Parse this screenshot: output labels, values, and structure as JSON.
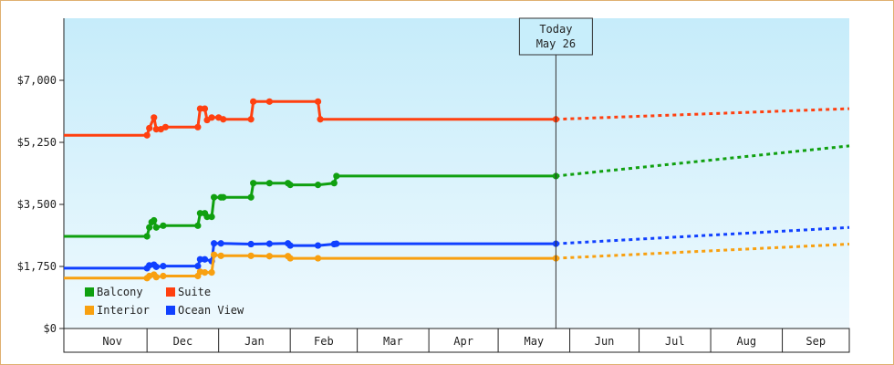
{
  "chart_data": {
    "type": "line",
    "title": "",
    "xlabel": "",
    "ylabel": "",
    "ylim": [
      0,
      8750
    ],
    "yticks": [
      {
        "value": 0,
        "label": "$0"
      },
      {
        "value": 1750,
        "label": "$1,750"
      },
      {
        "value": 3500,
        "label": "$3,500"
      },
      {
        "value": 5250,
        "label": "$5,250"
      },
      {
        "value": 7000,
        "label": "$7,000"
      }
    ],
    "xaxis": {
      "start": "2023-10-26",
      "end": "2024-09-30",
      "months": [
        {
          "label": "Nov",
          "start": "2023-11-01",
          "end": "2023-12-01"
        },
        {
          "label": "Dec",
          "start": "2023-12-01",
          "end": "2024-01-01"
        },
        {
          "label": "Jan",
          "start": "2024-01-01",
          "end": "2024-02-01"
        },
        {
          "label": "Feb",
          "start": "2024-02-01",
          "end": "2024-03-01"
        },
        {
          "label": "Mar",
          "start": "2024-03-01",
          "end": "2024-04-01"
        },
        {
          "label": "Apr",
          "start": "2024-04-01",
          "end": "2024-05-01"
        },
        {
          "label": "May",
          "start": "2024-05-01",
          "end": "2024-06-01"
        },
        {
          "label": "Jun",
          "start": "2024-06-01",
          "end": "2024-07-01"
        },
        {
          "label": "Jul",
          "start": "2024-07-01",
          "end": "2024-08-01"
        },
        {
          "label": "Aug",
          "start": "2024-08-01",
          "end": "2024-09-01"
        },
        {
          "label": "Sep",
          "start": "2024-09-01",
          "end": "2024-09-30"
        }
      ]
    },
    "today": {
      "date": "2024-05-26",
      "line1": "Today",
      "line2": "May 26"
    },
    "series": [
      {
        "name": "Suite",
        "color": "#ff4010",
        "points": [
          [
            "2023-10-26",
            5450
          ],
          [
            "2023-12-01",
            5450
          ],
          [
            "2023-12-02",
            5650
          ],
          [
            "2023-12-04",
            5950
          ],
          [
            "2023-12-05",
            5620
          ],
          [
            "2023-12-07",
            5620
          ],
          [
            "2023-12-09",
            5680
          ],
          [
            "2023-12-23",
            5680
          ],
          [
            "2023-12-24",
            6200
          ],
          [
            "2023-12-26",
            6200
          ],
          [
            "2023-12-27",
            5880
          ],
          [
            "2023-12-29",
            5950
          ],
          [
            "2024-01-01",
            5950
          ],
          [
            "2024-01-03",
            5900
          ],
          [
            "2024-01-15",
            5900
          ],
          [
            "2024-01-16",
            6400
          ],
          [
            "2024-01-23",
            6400
          ],
          [
            "2024-02-13",
            6400
          ],
          [
            "2024-02-14",
            5900
          ],
          [
            "2024-05-26",
            5900
          ]
        ],
        "forecast": [
          [
            "2024-05-26",
            5900
          ],
          [
            "2024-09-30",
            6200
          ]
        ]
      },
      {
        "name": "Balcony",
        "color": "#10a010",
        "points": [
          [
            "2023-10-26",
            2600
          ],
          [
            "2023-12-01",
            2600
          ],
          [
            "2023-12-02",
            2850
          ],
          [
            "2023-12-03",
            3000
          ],
          [
            "2023-12-04",
            3050
          ],
          [
            "2023-12-05",
            2850
          ],
          [
            "2023-12-08",
            2900
          ],
          [
            "2023-12-23",
            2900
          ],
          [
            "2023-12-24",
            3250
          ],
          [
            "2023-12-26",
            3250
          ],
          [
            "2023-12-27",
            3150
          ],
          [
            "2023-12-29",
            3150
          ],
          [
            "2023-12-30",
            3700
          ],
          [
            "2024-01-02",
            3700
          ],
          [
            "2024-01-03",
            3700
          ],
          [
            "2024-01-15",
            3700
          ],
          [
            "2024-01-16",
            4100
          ],
          [
            "2024-01-23",
            4100
          ],
          [
            "2024-01-31",
            4100
          ],
          [
            "2024-02-01",
            4050
          ],
          [
            "2024-02-13",
            4050
          ],
          [
            "2024-02-20",
            4100
          ],
          [
            "2024-02-21",
            4300
          ],
          [
            "2024-05-26",
            4300
          ]
        ],
        "forecast": [
          [
            "2024-05-26",
            4300
          ],
          [
            "2024-09-30",
            5150
          ]
        ]
      },
      {
        "name": "Ocean View",
        "color": "#1040ff",
        "points": [
          [
            "2023-10-26",
            1700
          ],
          [
            "2023-12-01",
            1700
          ],
          [
            "2023-12-02",
            1780
          ],
          [
            "2023-12-04",
            1800
          ],
          [
            "2023-12-05",
            1740
          ],
          [
            "2023-12-08",
            1760
          ],
          [
            "2023-12-23",
            1760
          ],
          [
            "2023-12-24",
            1950
          ],
          [
            "2023-12-26",
            1950
          ],
          [
            "2023-12-29",
            1900
          ],
          [
            "2023-12-30",
            2400
          ],
          [
            "2024-01-02",
            2400
          ],
          [
            "2024-01-15",
            2380
          ],
          [
            "2024-01-23",
            2390
          ],
          [
            "2024-01-31",
            2400
          ],
          [
            "2024-02-01",
            2340
          ],
          [
            "2024-02-13",
            2340
          ],
          [
            "2024-02-20",
            2380
          ],
          [
            "2024-02-21",
            2390
          ],
          [
            "2024-05-26",
            2390
          ]
        ],
        "forecast": [
          [
            "2024-05-26",
            2390
          ],
          [
            "2024-09-30",
            2850
          ]
        ]
      },
      {
        "name": "Interior",
        "color": "#f8a010",
        "points": [
          [
            "2023-10-26",
            1420
          ],
          [
            "2023-12-01",
            1420
          ],
          [
            "2023-12-02",
            1480
          ],
          [
            "2023-12-04",
            1520
          ],
          [
            "2023-12-05",
            1450
          ],
          [
            "2023-12-08",
            1480
          ],
          [
            "2023-12-23",
            1480
          ],
          [
            "2023-12-24",
            1600
          ],
          [
            "2023-12-26",
            1580
          ],
          [
            "2023-12-29",
            1580
          ],
          [
            "2023-12-30",
            2080
          ],
          [
            "2024-01-02",
            2050
          ],
          [
            "2024-01-15",
            2050
          ],
          [
            "2024-01-23",
            2040
          ],
          [
            "2024-01-31",
            2040
          ],
          [
            "2024-02-01",
            1980
          ],
          [
            "2024-02-13",
            1980
          ],
          [
            "2024-05-26",
            1980
          ]
        ],
        "forecast": [
          [
            "2024-05-26",
            1980
          ],
          [
            "2024-09-30",
            2380
          ]
        ]
      }
    ],
    "legend": {
      "placement": "bottom-left",
      "items": [
        {
          "name": "Balcony",
          "color": "#10a010"
        },
        {
          "name": "Suite",
          "color": "#ff4010"
        },
        {
          "name": "Interior",
          "color": "#f8a010"
        },
        {
          "name": "Ocean View",
          "color": "#1040ff"
        }
      ]
    }
  }
}
